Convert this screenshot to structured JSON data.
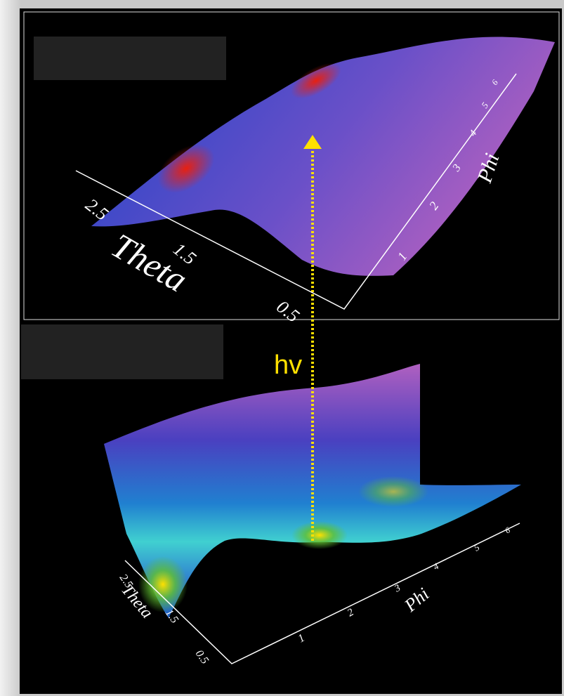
{
  "upper_panel": {
    "theta_label": "Theta",
    "theta_ticks": [
      "2.5",
      "1.5",
      "0.5"
    ],
    "phi_label": "Phi",
    "phi_ticks": [
      "1",
      "2",
      "3",
      "4",
      "5",
      "6"
    ]
  },
  "transition_label": "hv",
  "lower_panel": {
    "theta_label": "Theta",
    "theta_ticks": [
      "2.5",
      "1.5",
      "0.5"
    ],
    "phi_label": "Phi",
    "phi_ticks": [
      "1",
      "2",
      "3",
      "4",
      "5",
      "6"
    ]
  }
}
